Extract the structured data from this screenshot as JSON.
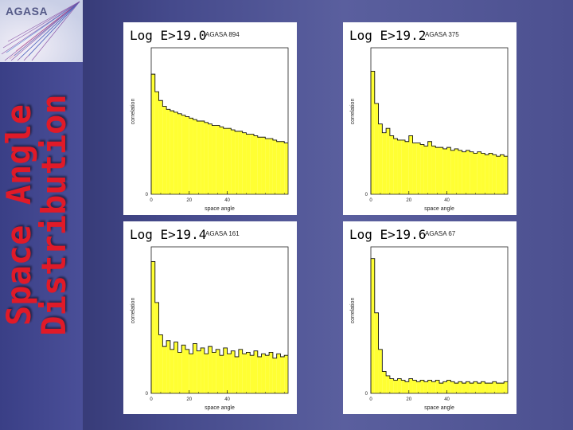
{
  "logo": {
    "text": "AGASA"
  },
  "slide": {
    "title_line1": "Space Angle",
    "title_line2": "Distribution"
  },
  "colors": {
    "fill": "#ffff33",
    "title": "#e01a28"
  },
  "chart_data": [
    {
      "type": "bar",
      "label": "Log E>19.0",
      "tag": "AGASA 894",
      "xlabel": "space angle",
      "ylabel": "correlation",
      "xlim": [
        0,
        72
      ],
      "ylim": [
        0,
        1
      ],
      "xticks": [
        0,
        20,
        40
      ],
      "yticks": [
        0
      ],
      "x": [
        0,
        2,
        4,
        6,
        8,
        10,
        12,
        14,
        16,
        18,
        20,
        22,
        24,
        26,
        28,
        30,
        32,
        34,
        36,
        38,
        40,
        42,
        44,
        46,
        48,
        50,
        52,
        54,
        56,
        58,
        60,
        62,
        64,
        66,
        68,
        70
      ],
      "values": [
        0.82,
        0.7,
        0.64,
        0.6,
        0.58,
        0.57,
        0.56,
        0.55,
        0.54,
        0.53,
        0.52,
        0.51,
        0.5,
        0.5,
        0.49,
        0.48,
        0.47,
        0.47,
        0.46,
        0.45,
        0.45,
        0.44,
        0.43,
        0.43,
        0.42,
        0.41,
        0.41,
        0.4,
        0.39,
        0.39,
        0.38,
        0.38,
        0.37,
        0.36,
        0.36,
        0.35
      ]
    },
    {
      "type": "bar",
      "label": "Log E>19.2",
      "tag": "AGASA 375",
      "xlabel": "space angle",
      "ylabel": "correlation",
      "xlim": [
        0,
        72
      ],
      "ylim": [
        0,
        1
      ],
      "xticks": [
        0,
        20,
        40
      ],
      "yticks": [
        0
      ],
      "x": [
        0,
        2,
        4,
        6,
        8,
        10,
        12,
        14,
        16,
        18,
        20,
        22,
        24,
        26,
        28,
        30,
        32,
        34,
        36,
        38,
        40,
        42,
        44,
        46,
        48,
        50,
        52,
        54,
        56,
        58,
        60,
        62,
        64,
        66,
        68,
        70
      ],
      "values": [
        0.84,
        0.62,
        0.48,
        0.42,
        0.45,
        0.4,
        0.38,
        0.37,
        0.37,
        0.36,
        0.4,
        0.35,
        0.35,
        0.34,
        0.33,
        0.36,
        0.33,
        0.32,
        0.32,
        0.31,
        0.32,
        0.3,
        0.31,
        0.3,
        0.29,
        0.3,
        0.29,
        0.28,
        0.29,
        0.28,
        0.27,
        0.28,
        0.27,
        0.26,
        0.27,
        0.26
      ]
    },
    {
      "type": "bar",
      "label": "Log E>19.4",
      "tag": "AGASA 161",
      "xlabel": "space angle",
      "ylabel": "correlation",
      "xlim": [
        0,
        72
      ],
      "ylim": [
        0,
        1
      ],
      "xticks": [
        0,
        20,
        40
      ],
      "yticks": [
        0
      ],
      "x": [
        0,
        2,
        4,
        6,
        8,
        10,
        12,
        14,
        16,
        18,
        20,
        22,
        24,
        26,
        28,
        30,
        32,
        34,
        36,
        38,
        40,
        42,
        44,
        46,
        48,
        50,
        52,
        54,
        56,
        58,
        60,
        62,
        64,
        66,
        68,
        70
      ],
      "values": [
        0.9,
        0.62,
        0.4,
        0.32,
        0.36,
        0.3,
        0.35,
        0.28,
        0.33,
        0.3,
        0.27,
        0.34,
        0.29,
        0.31,
        0.27,
        0.32,
        0.28,
        0.3,
        0.26,
        0.31,
        0.27,
        0.29,
        0.25,
        0.3,
        0.27,
        0.28,
        0.26,
        0.29,
        0.25,
        0.27,
        0.26,
        0.28,
        0.24,
        0.27,
        0.25,
        0.26
      ]
    },
    {
      "type": "bar",
      "label": "Log E>19.6",
      "tag": "AGASA 67",
      "xlabel": "space angle",
      "ylabel": "correlation",
      "xlim": [
        0,
        72
      ],
      "ylim": [
        0,
        1
      ],
      "xticks": [
        0,
        20,
        40
      ],
      "yticks": [
        0
      ],
      "x": [
        0,
        2,
        4,
        6,
        8,
        10,
        12,
        14,
        16,
        18,
        20,
        22,
        24,
        26,
        28,
        30,
        32,
        34,
        36,
        38,
        40,
        42,
        44,
        46,
        48,
        50,
        52,
        54,
        56,
        58,
        60,
        62,
        64,
        66,
        68,
        70
      ],
      "values": [
        0.92,
        0.55,
        0.3,
        0.15,
        0.12,
        0.1,
        0.09,
        0.1,
        0.09,
        0.08,
        0.1,
        0.09,
        0.08,
        0.09,
        0.08,
        0.09,
        0.08,
        0.09,
        0.07,
        0.08,
        0.09,
        0.08,
        0.07,
        0.08,
        0.07,
        0.08,
        0.07,
        0.08,
        0.07,
        0.08,
        0.07,
        0.07,
        0.08,
        0.07,
        0.07,
        0.08
      ]
    }
  ]
}
